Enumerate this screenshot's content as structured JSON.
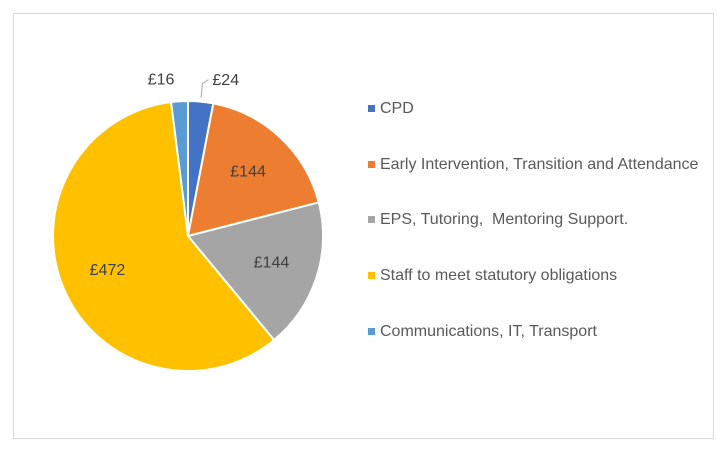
{
  "chart_data": {
    "type": "pie",
    "categories": [
      "CPD",
      "Early Intervention, Transition and Attendance",
      "EPS, Tutoring,  Mentoring Support.",
      "Staff to meet statutory obligations",
      "Communications, IT, Transport"
    ],
    "values": [
      24,
      144,
      144,
      472,
      16
    ],
    "value_labels": [
      "£24",
      "£144",
      "£144",
      "£472",
      "£16"
    ],
    "colors": [
      "#4472c4",
      "#ed7d31",
      "#a5a5a5",
      "#ffc000",
      "#5b9bd5"
    ],
    "legend": "right"
  }
}
